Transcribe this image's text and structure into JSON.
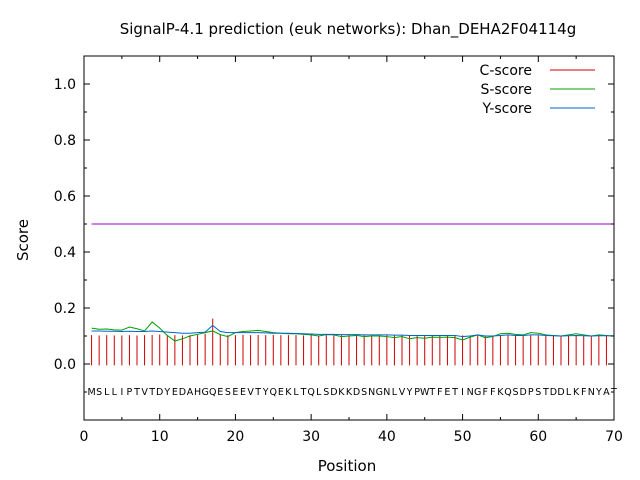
{
  "chart_data": {
    "type": "line",
    "title": "SignalP-4.1 prediction (euk networks): Dhan_DEHA2F04114g",
    "xlabel": "Position",
    "ylabel": "Score",
    "xlim": [
      0,
      70
    ],
    "ylim": [
      -0.2,
      1.1
    ],
    "x_ticks": [
      0,
      10,
      20,
      30,
      40,
      50,
      60,
      70
    ],
    "y_ticks": [
      0.0,
      0.2,
      0.4,
      0.6,
      0.8,
      1.0
    ],
    "x_tick_labels": [
      "0",
      "10",
      "20",
      "30",
      "40",
      "50",
      "60",
      "70"
    ],
    "y_tick_labels": [
      "0.0",
      "0.2",
      "0.4",
      "0.6",
      "0.8",
      "1.0"
    ],
    "grid": false,
    "legend_position": "top-right",
    "threshold": 0.5,
    "threshold_color": "#9400d3",
    "sequence": [
      "M",
      "S",
      "L",
      "L",
      "I",
      "P",
      "T",
      "V",
      "T",
      "D",
      "Y",
      "E",
      "D",
      "A",
      "H",
      "G",
      "Q",
      "E",
      "S",
      "E",
      "E",
      "V",
      "T",
      "Y",
      "Q",
      "E",
      "K",
      "L",
      "T",
      "Q",
      "L",
      "S",
      "D",
      "K",
      "K",
      "D",
      "S",
      "N",
      "G",
      "N",
      "L",
      "V",
      "Y",
      "P",
      "W",
      "T",
      "F",
      "E",
      "T",
      "I",
      "N",
      "G",
      "F",
      "F",
      "K",
      "Q",
      "S",
      "D",
      "P",
      "S",
      "T",
      "D",
      "D",
      "L",
      "K",
      "F",
      "N",
      "Y",
      "A",
      "T"
    ],
    "series": [
      {
        "name": "C-score",
        "style": "impulses",
        "color": "#cc0000",
        "x": [
          1,
          2,
          3,
          4,
          5,
          6,
          7,
          8,
          9,
          10,
          11,
          12,
          13,
          14,
          15,
          16,
          17,
          18,
          19,
          20,
          21,
          22,
          23,
          24,
          25,
          26,
          27,
          28,
          29,
          30,
          31,
          32,
          33,
          34,
          35,
          36,
          37,
          38,
          39,
          40,
          41,
          42,
          43,
          44,
          45,
          46,
          47,
          48,
          49,
          50,
          51,
          52,
          53,
          54,
          55,
          56,
          57,
          58,
          59,
          60,
          61,
          62,
          63,
          64,
          65,
          66,
          67,
          68,
          69,
          70
        ],
        "values": [
          0.103,
          0.102,
          0.103,
          0.102,
          0.102,
          0.103,
          0.102,
          0.103,
          0.104,
          0.105,
          0.104,
          0.103,
          0.102,
          0.103,
          0.104,
          0.108,
          0.162,
          0.106,
          0.103,
          0.103,
          0.104,
          0.103,
          0.104,
          0.103,
          0.104,
          0.103,
          0.103,
          0.103,
          0.102,
          0.103,
          0.102,
          0.103,
          0.102,
          0.103,
          0.103,
          0.102,
          0.103,
          0.102,
          0.102,
          0.103,
          0.102,
          0.103,
          0.102,
          0.102,
          0.103,
          0.102,
          0.102,
          0.103,
          0.102,
          0.102,
          0.102,
          0.103,
          0.102,
          0.102,
          0.102,
          0.103,
          0.102,
          0.102,
          0.102,
          0.102,
          0.102,
          0.102,
          0.102,
          0.102,
          0.102,
          0.102,
          0.102,
          0.102,
          0.102,
          0.102
        ]
      },
      {
        "name": "S-score",
        "style": "line",
        "color": "#00a000",
        "x": [
          1,
          2,
          3,
          4,
          5,
          6,
          7,
          8,
          9,
          10,
          11,
          12,
          13,
          14,
          15,
          16,
          17,
          18,
          19,
          20,
          21,
          22,
          23,
          24,
          25,
          26,
          27,
          28,
          29,
          30,
          31,
          32,
          33,
          34,
          35,
          36,
          37,
          38,
          39,
          40,
          41,
          42,
          43,
          44,
          45,
          46,
          47,
          48,
          49,
          50,
          51,
          52,
          53,
          54,
          55,
          56,
          57,
          58,
          59,
          60,
          61,
          62,
          63,
          64,
          65,
          66,
          67,
          68,
          69,
          70
        ],
        "values": [
          0.128,
          0.124,
          0.125,
          0.122,
          0.121,
          0.132,
          0.126,
          0.118,
          0.15,
          0.128,
          0.102,
          0.082,
          0.09,
          0.1,
          0.106,
          0.112,
          0.118,
          0.105,
          0.098,
          0.112,
          0.116,
          0.118,
          0.12,
          0.116,
          0.112,
          0.11,
          0.108,
          0.108,
          0.106,
          0.104,
          0.1,
          0.105,
          0.104,
          0.098,
          0.1,
          0.102,
          0.098,
          0.1,
          0.1,
          0.098,
          0.094,
          0.098,
          0.09,
          0.094,
          0.092,
          0.096,
          0.095,
          0.096,
          0.094,
          0.086,
          0.096,
          0.104,
          0.094,
          0.098,
          0.108,
          0.11,
          0.106,
          0.104,
          0.112,
          0.11,
          0.104,
          0.102,
          0.1,
          0.104,
          0.108,
          0.104,
          0.1,
          0.104,
          0.102,
          0.1
        ]
      },
      {
        "name": "Y-score",
        "style": "line",
        "color": "#0066cc",
        "x": [
          1,
          2,
          3,
          4,
          5,
          6,
          7,
          8,
          9,
          10,
          11,
          12,
          13,
          14,
          15,
          16,
          17,
          18,
          19,
          20,
          21,
          22,
          23,
          24,
          25,
          26,
          27,
          28,
          29,
          30,
          31,
          32,
          33,
          34,
          35,
          36,
          37,
          38,
          39,
          40,
          41,
          42,
          43,
          44,
          45,
          46,
          47,
          48,
          49,
          50,
          51,
          52,
          53,
          54,
          55,
          56,
          57,
          58,
          59,
          60,
          61,
          62,
          63,
          64,
          65,
          66,
          67,
          68,
          69,
          70
        ],
        "values": [
          0.118,
          0.118,
          0.117,
          0.117,
          0.116,
          0.117,
          0.116,
          0.116,
          0.118,
          0.116,
          0.114,
          0.112,
          0.11,
          0.11,
          0.112,
          0.114,
          0.138,
          0.116,
          0.112,
          0.112,
          0.112,
          0.112,
          0.112,
          0.111,
          0.11,
          0.11,
          0.11,
          0.109,
          0.108,
          0.107,
          0.106,
          0.106,
          0.106,
          0.105,
          0.105,
          0.105,
          0.104,
          0.104,
          0.104,
          0.104,
          0.103,
          0.103,
          0.102,
          0.102,
          0.102,
          0.102,
          0.102,
          0.102,
          0.102,
          0.098,
          0.1,
          0.104,
          0.1,
          0.1,
          0.102,
          0.104,
          0.102,
          0.102,
          0.104,
          0.104,
          0.102,
          0.101,
          0.1,
          0.101,
          0.102,
          0.101,
          0.1,
          0.101,
          0.101,
          0.1
        ]
      }
    ]
  }
}
